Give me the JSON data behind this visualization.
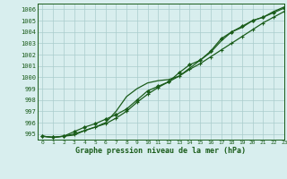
{
  "title": "Graphe pression niveau de la mer (hPa)",
  "bg_color": "#d8eeee",
  "grid_color": "#aacccc",
  "line_color": "#1a5c1a",
  "xlim": [
    -0.5,
    23
  ],
  "ylim": [
    994.5,
    1006.5
  ],
  "yticks": [
    995,
    996,
    997,
    998,
    999,
    1000,
    1001,
    1002,
    1003,
    1004,
    1005,
    1006
  ],
  "xticks": [
    0,
    1,
    2,
    3,
    4,
    5,
    6,
    7,
    8,
    9,
    10,
    11,
    12,
    13,
    14,
    15,
    16,
    17,
    18,
    19,
    20,
    21,
    22,
    23
  ],
  "line1_x": [
    0,
    1,
    2,
    3,
    4,
    5,
    6,
    7,
    8,
    9,
    10,
    11,
    12,
    13,
    14,
    15,
    16,
    17,
    18,
    19,
    20,
    21,
    22,
    23
  ],
  "line1": [
    994.8,
    994.7,
    994.8,
    995.0,
    995.3,
    995.6,
    995.9,
    996.4,
    997.0,
    997.8,
    998.5,
    999.1,
    999.6,
    1000.1,
    1000.7,
    1001.2,
    1001.8,
    1002.4,
    1003.0,
    1003.6,
    1004.2,
    1004.8,
    1005.3,
    1005.8
  ],
  "line2_x": [
    0,
    1,
    2,
    3,
    4,
    5,
    6,
    7,
    8,
    9,
    10,
    11,
    12,
    13,
    14,
    15,
    16,
    17,
    18,
    19,
    20,
    21,
    22,
    23
  ],
  "line2": [
    994.8,
    994.7,
    994.8,
    995.2,
    995.6,
    995.9,
    996.3,
    996.7,
    997.2,
    998.0,
    998.8,
    999.2,
    999.6,
    1000.4,
    1001.1,
    1001.5,
    1002.3,
    1003.4,
    1004.0,
    1004.5,
    1005.0,
    1005.3,
    1005.7,
    1006.1
  ],
  "line3_x": [
    0,
    1,
    2,
    3,
    4,
    5,
    6,
    7,
    8,
    9,
    10,
    11,
    12,
    13,
    14,
    15,
    16,
    17,
    18,
    19,
    20,
    21,
    22,
    23
  ],
  "line3": [
    994.8,
    994.7,
    994.8,
    994.9,
    995.3,
    995.6,
    996.0,
    997.0,
    998.3,
    999.0,
    999.5,
    999.7,
    999.8,
    1000.1,
    1000.8,
    1001.5,
    1002.2,
    1003.2,
    1004.0,
    1004.4,
    1005.0,
    1005.3,
    1005.8,
    1006.2
  ]
}
